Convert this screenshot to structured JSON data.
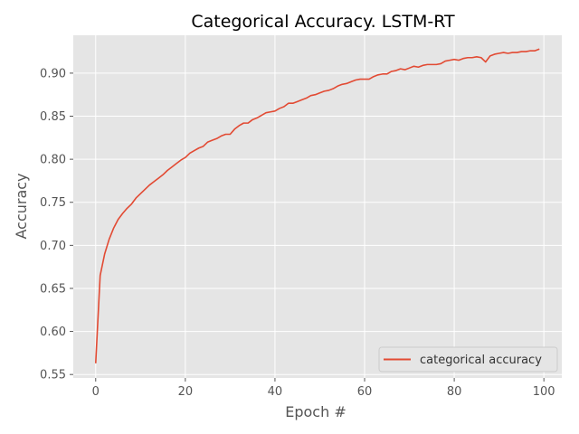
{
  "chart_data": {
    "type": "line",
    "title": "Categorical Accuracy. LSTM-RT",
    "xlabel": "Epoch #",
    "ylabel": "Accuracy",
    "xlim": [
      -5,
      104
    ],
    "ylim": [
      0.546,
      0.944
    ],
    "xticks": [
      0,
      20,
      40,
      60,
      80,
      100
    ],
    "yticks": [
      0.55,
      0.6,
      0.65,
      0.7,
      0.75,
      0.8,
      0.85,
      0.9
    ],
    "ytick_labels": [
      "0.55",
      "0.60",
      "0.65",
      "0.70",
      "0.75",
      "0.80",
      "0.85",
      "0.90"
    ],
    "grid": true,
    "legend_position": "lower-right",
    "colors": {
      "background": "#e5e5e5",
      "grid": "#ffffff",
      "series": "#e24a33"
    },
    "series": [
      {
        "name": "categorical accuracy",
        "x": [
          0,
          1,
          2,
          3,
          4,
          5,
          6,
          7,
          8,
          9,
          10,
          11,
          12,
          13,
          14,
          15,
          16,
          17,
          18,
          19,
          20,
          21,
          22,
          23,
          24,
          25,
          26,
          27,
          28,
          29,
          30,
          31,
          32,
          33,
          34,
          35,
          36,
          37,
          38,
          39,
          40,
          41,
          42,
          43,
          44,
          45,
          46,
          47,
          48,
          49,
          50,
          51,
          52,
          53,
          54,
          55,
          56,
          57,
          58,
          59,
          60,
          61,
          62,
          63,
          64,
          65,
          66,
          67,
          68,
          69,
          70,
          71,
          72,
          73,
          74,
          75,
          76,
          77,
          78,
          79,
          80,
          81,
          82,
          83,
          84,
          85,
          86,
          87,
          88,
          89,
          90,
          91,
          92,
          93,
          94,
          95,
          96,
          97,
          98,
          99
        ],
        "values": [
          0.563,
          0.665,
          0.69,
          0.707,
          0.72,
          0.73,
          0.737,
          0.743,
          0.748,
          0.755,
          0.76,
          0.765,
          0.77,
          0.774,
          0.778,
          0.782,
          0.787,
          0.791,
          0.795,
          0.799,
          0.802,
          0.807,
          0.81,
          0.813,
          0.815,
          0.82,
          0.822,
          0.824,
          0.827,
          0.829,
          0.829,
          0.835,
          0.839,
          0.842,
          0.842,
          0.846,
          0.848,
          0.851,
          0.854,
          0.855,
          0.856,
          0.859,
          0.861,
          0.865,
          0.865,
          0.867,
          0.869,
          0.871,
          0.874,
          0.875,
          0.877,
          0.879,
          0.88,
          0.882,
          0.885,
          0.887,
          0.888,
          0.89,
          0.892,
          0.893,
          0.893,
          0.893,
          0.896,
          0.898,
          0.899,
          0.899,
          0.902,
          0.903,
          0.905,
          0.904,
          0.906,
          0.908,
          0.907,
          0.909,
          0.91,
          0.91,
          0.91,
          0.911,
          0.914,
          0.915,
          0.916,
          0.915,
          0.917,
          0.918,
          0.918,
          0.919,
          0.918,
          0.913,
          0.92,
          0.922,
          0.923,
          0.924,
          0.923,
          0.924,
          0.924,
          0.925,
          0.925,
          0.926,
          0.926,
          0.928
        ]
      }
    ]
  }
}
